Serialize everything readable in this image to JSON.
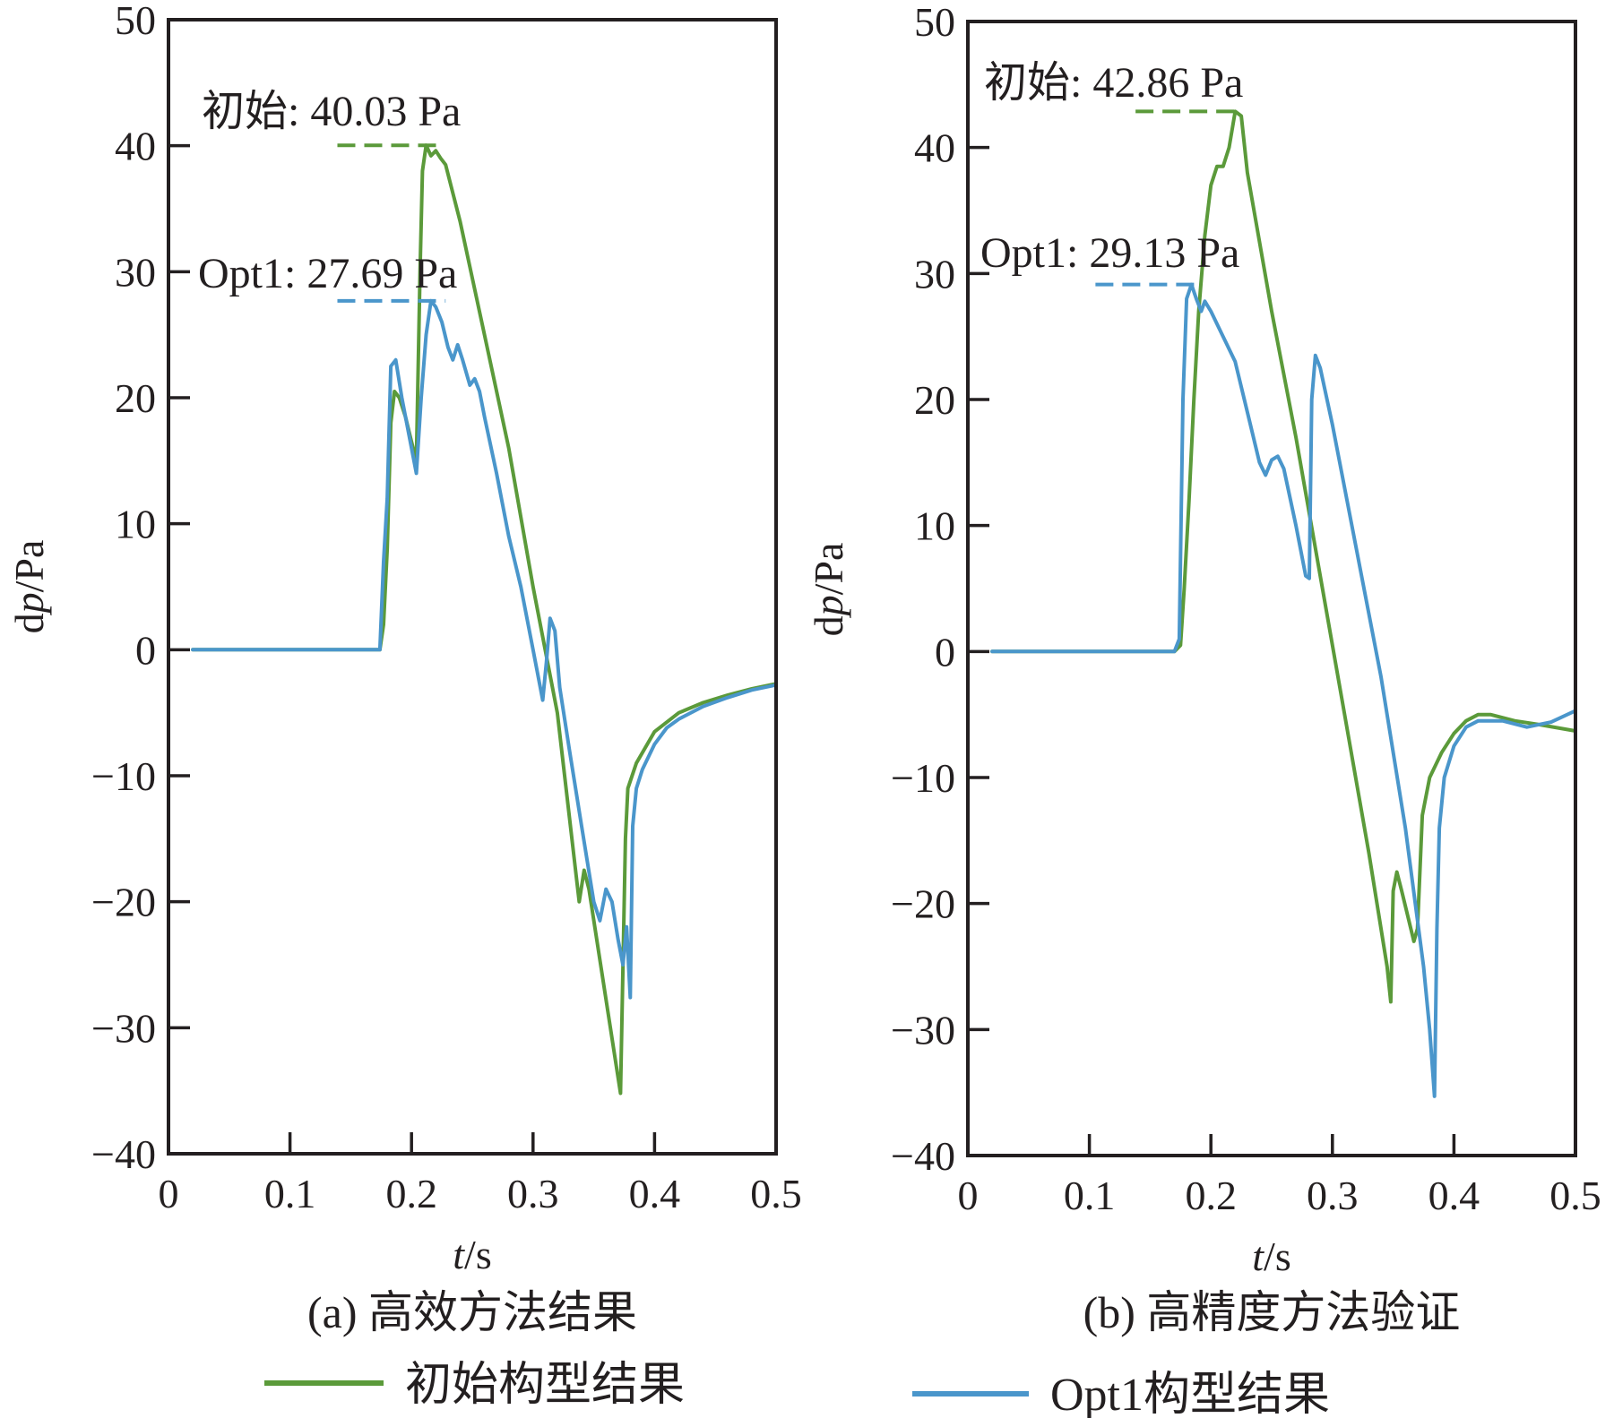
{
  "colors": {
    "initial": "#5b9a3a",
    "opt1": "#4a96cb",
    "axis": "#231f20"
  },
  "legend": [
    {
      "label": "初始构型结果",
      "series": "initial"
    },
    {
      "label": "Opt1构型结果",
      "series": "opt1"
    }
  ],
  "chart_data": [
    {
      "type": "line",
      "id": "a",
      "caption": "(a) 高效方法结果",
      "xlabel_var": "t",
      "xlabel_unit": "/s",
      "ylabel_prefix": "d",
      "ylabel_var": "p",
      "ylabel_unit": "/Pa",
      "xlim": [
        0,
        0.5
      ],
      "ylim": [
        -40,
        50
      ],
      "xticks": [
        0,
        0.1,
        0.2,
        0.3,
        0.4,
        0.5
      ],
      "xtick_labels": [
        "0",
        "0.1",
        "0.2",
        "0.3",
        "0.4",
        "0.5"
      ],
      "yticks": [
        -40,
        -30,
        -20,
        -10,
        0,
        10,
        20,
        30,
        40,
        50
      ],
      "ytick_labels": [
        "−40",
        "−30",
        "−20",
        "−10",
        "0",
        "10",
        "20",
        "30",
        "40",
        "50"
      ],
      "annotations": [
        {
          "series": "initial",
          "text": "初始: 40.03 Pa",
          "value": 40.03,
          "x_range": [
            0.139,
            0.225
          ]
        },
        {
          "series": "opt1",
          "text": "Opt1: 27.69 Pa",
          "value": 27.69,
          "x_range": [
            0.139,
            0.228
          ]
        }
      ],
      "series": [
        {
          "key": "initial",
          "name": "初始构型结果",
          "points": [
            [
              0.02,
              0
            ],
            [
              0.174,
              0
            ],
            [
              0.177,
              2
            ],
            [
              0.18,
              8
            ],
            [
              0.183,
              18
            ],
            [
              0.186,
              20.5
            ],
            [
              0.19,
              20
            ],
            [
              0.195,
              18.5
            ],
            [
              0.2,
              16.5
            ],
            [
              0.204,
              15
            ],
            [
              0.207,
              30
            ],
            [
              0.209,
              38
            ],
            [
              0.212,
              40.03
            ],
            [
              0.216,
              39.2
            ],
            [
              0.22,
              39.6
            ],
            [
              0.224,
              39
            ],
            [
              0.228,
              38.5
            ],
            [
              0.24,
              34
            ],
            [
              0.26,
              25
            ],
            [
              0.28,
              16
            ],
            [
              0.3,
              5
            ],
            [
              0.32,
              -5
            ],
            [
              0.338,
              -20
            ],
            [
              0.342,
              -17.5
            ],
            [
              0.346,
              -19
            ],
            [
              0.372,
              -35.2
            ],
            [
              0.376,
              -15
            ],
            [
              0.378,
              -11
            ],
            [
              0.385,
              -9
            ],
            [
              0.4,
              -6.5
            ],
            [
              0.42,
              -5
            ],
            [
              0.44,
              -4.2
            ],
            [
              0.46,
              -3.6
            ],
            [
              0.48,
              -3.1
            ],
            [
              0.5,
              -2.7
            ]
          ]
        },
        {
          "key": "opt1",
          "name": "Opt1构型结果",
          "points": [
            [
              0.02,
              0
            ],
            [
              0.17,
              0
            ],
            [
              0.174,
              0
            ],
            [
              0.177,
              7
            ],
            [
              0.18,
              12
            ],
            [
              0.183,
              22.5
            ],
            [
              0.187,
              23
            ],
            [
              0.192,
              20
            ],
            [
              0.198,
              17
            ],
            [
              0.204,
              14
            ],
            [
              0.208,
              20
            ],
            [
              0.212,
              25
            ],
            [
              0.216,
              27.69
            ],
            [
              0.22,
              27.2
            ],
            [
              0.225,
              26
            ],
            [
              0.23,
              24
            ],
            [
              0.234,
              23
            ],
            [
              0.238,
              24.2
            ],
            [
              0.242,
              23
            ],
            [
              0.248,
              21
            ],
            [
              0.252,
              21.5
            ],
            [
              0.256,
              20.5
            ],
            [
              0.26,
              18.5
            ],
            [
              0.27,
              14
            ],
            [
              0.28,
              9
            ],
            [
              0.29,
              5
            ],
            [
              0.3,
              0
            ],
            [
              0.308,
              -4
            ],
            [
              0.311,
              -1
            ],
            [
              0.314,
              2.5
            ],
            [
              0.318,
              1.5
            ],
            [
              0.322,
              -3
            ],
            [
              0.33,
              -8
            ],
            [
              0.34,
              -14
            ],
            [
              0.35,
              -20
            ],
            [
              0.355,
              -21.5
            ],
            [
              0.36,
              -19
            ],
            [
              0.365,
              -20
            ],
            [
              0.37,
              -23
            ],
            [
              0.374,
              -25
            ],
            [
              0.377,
              -22
            ],
            [
              0.38,
              -27.6
            ],
            [
              0.382,
              -14
            ],
            [
              0.385,
              -11
            ],
            [
              0.39,
              -9.5
            ],
            [
              0.4,
              -7.5
            ],
            [
              0.41,
              -6.2
            ],
            [
              0.42,
              -5.5
            ],
            [
              0.44,
              -4.5
            ],
            [
              0.46,
              -3.8
            ],
            [
              0.48,
              -3.2
            ],
            [
              0.5,
              -2.8
            ]
          ]
        }
      ]
    },
    {
      "type": "line",
      "id": "b",
      "caption": "(b) 高精度方法验证",
      "xlabel_var": "t",
      "xlabel_unit": "/s",
      "ylabel_prefix": "d",
      "ylabel_var": "p",
      "ylabel_unit": "/Pa",
      "xlim": [
        0,
        0.5
      ],
      "ylim": [
        -40,
        50
      ],
      "xticks": [
        0,
        0.1,
        0.2,
        0.3,
        0.4,
        0.5
      ],
      "xtick_labels": [
        "0",
        "0.1",
        "0.2",
        "0.3",
        "0.4",
        "0.5"
      ],
      "yticks": [
        -40,
        -30,
        -20,
        -10,
        0,
        10,
        20,
        30,
        40,
        50
      ],
      "ytick_labels": [
        "−40",
        "−30",
        "−20",
        "−10",
        "0",
        "10",
        "20",
        "30",
        "40",
        "50"
      ],
      "annotations": [
        {
          "series": "initial",
          "text": "初始: 42.86 Pa",
          "value": 42.86,
          "x_range": [
            0.138,
            0.226
          ]
        },
        {
          "series": "opt1",
          "text": "Opt1: 29.13 Pa",
          "value": 29.13,
          "x_range": [
            0.105,
            0.188
          ]
        }
      ],
      "series": [
        {
          "key": "initial",
          "name": "初始构型结果",
          "points": [
            [
              0.02,
              0
            ],
            [
              0.17,
              0
            ],
            [
              0.175,
              0.5
            ],
            [
              0.178,
              5
            ],
            [
              0.182,
              12
            ],
            [
              0.186,
              20
            ],
            [
              0.19,
              27
            ],
            [
              0.195,
              33
            ],
            [
              0.2,
              37
            ],
            [
              0.205,
              38.5
            ],
            [
              0.21,
              38.5
            ],
            [
              0.215,
              40
            ],
            [
              0.22,
              42.86
            ],
            [
              0.225,
              42.5
            ],
            [
              0.23,
              38
            ],
            [
              0.25,
              27
            ],
            [
              0.27,
              17
            ],
            [
              0.29,
              6
            ],
            [
              0.31,
              -5
            ],
            [
              0.33,
              -16
            ],
            [
              0.345,
              -25
            ],
            [
              0.348,
              -27.8
            ],
            [
              0.35,
              -19
            ],
            [
              0.353,
              -17.5
            ],
            [
              0.357,
              -19
            ],
            [
              0.362,
              -21
            ],
            [
              0.367,
              -23
            ],
            [
              0.37,
              -22
            ],
            [
              0.374,
              -13
            ],
            [
              0.38,
              -10
            ],
            [
              0.39,
              -8
            ],
            [
              0.4,
              -6.5
            ],
            [
              0.41,
              -5.5
            ],
            [
              0.42,
              -5
            ],
            [
              0.43,
              -5
            ],
            [
              0.45,
              -5.5
            ],
            [
              0.47,
              -5.8
            ],
            [
              0.5,
              -6.3
            ]
          ]
        },
        {
          "key": "opt1",
          "name": "Opt1构型结果",
          "points": [
            [
              0.02,
              0
            ],
            [
              0.17,
              0
            ],
            [
              0.174,
              1
            ],
            [
              0.177,
              20
            ],
            [
              0.18,
              28
            ],
            [
              0.184,
              29.13
            ],
            [
              0.188,
              28
            ],
            [
              0.192,
              27
            ],
            [
              0.195,
              27.8
            ],
            [
              0.2,
              27
            ],
            [
              0.21,
              25
            ],
            [
              0.22,
              23
            ],
            [
              0.23,
              19
            ],
            [
              0.24,
              15
            ],
            [
              0.245,
              14
            ],
            [
              0.25,
              15.2
            ],
            [
              0.255,
              15.5
            ],
            [
              0.26,
              14.5
            ],
            [
              0.27,
              10
            ],
            [
              0.278,
              6
            ],
            [
              0.281,
              5.8
            ],
            [
              0.283,
              20
            ],
            [
              0.286,
              23.5
            ],
            [
              0.29,
              22.5
            ],
            [
              0.3,
              18
            ],
            [
              0.32,
              8
            ],
            [
              0.34,
              -2
            ],
            [
              0.36,
              -14
            ],
            [
              0.375,
              -25
            ],
            [
              0.38,
              -30
            ],
            [
              0.384,
              -35.3
            ],
            [
              0.386,
              -22
            ],
            [
              0.388,
              -14
            ],
            [
              0.392,
              -10
            ],
            [
              0.4,
              -7.5
            ],
            [
              0.41,
              -6
            ],
            [
              0.42,
              -5.5
            ],
            [
              0.44,
              -5.5
            ],
            [
              0.46,
              -6
            ],
            [
              0.48,
              -5.6
            ],
            [
              0.5,
              -4.7
            ]
          ]
        }
      ]
    }
  ]
}
